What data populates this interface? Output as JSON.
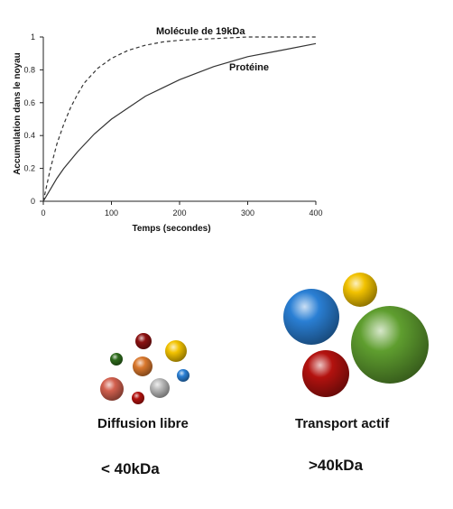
{
  "chart_data": {
    "type": "line",
    "xlabel": "Temps (secondes)",
    "ylabel": "Accumulation dans le noyau",
    "xlim": [
      0,
      400
    ],
    "ylim": [
      0,
      1
    ],
    "xticks": [
      0,
      100,
      200,
      300,
      400
    ],
    "yticks": [
      0,
      0.2,
      0.4,
      0.6,
      0.8,
      1
    ],
    "xtick_labels": [
      "0",
      "100",
      "200",
      "300",
      "400"
    ],
    "ytick_labels": [
      "0",
      "0.2",
      "0.4",
      "0.6",
      "0.8",
      "1"
    ],
    "grid": false,
    "series": [
      {
        "name": "Molécule de 19kDa",
        "style": "dashed",
        "x": [
          0,
          10,
          20,
          30,
          40,
          50,
          60,
          80,
          100,
          125,
          150,
          175,
          200,
          250,
          300,
          350,
          400
        ],
        "y": [
          0,
          0.19,
          0.35,
          0.47,
          0.57,
          0.65,
          0.72,
          0.81,
          0.87,
          0.92,
          0.95,
          0.97,
          0.98,
          0.99,
          1.0,
          1.0,
          1.0
        ]
      },
      {
        "name": "Protéine",
        "style": "solid",
        "x": [
          0,
          10,
          20,
          30,
          50,
          75,
          100,
          125,
          150,
          175,
          200,
          250,
          300,
          350,
          400
        ],
        "y": [
          0,
          0.07,
          0.14,
          0.2,
          0.3,
          0.41,
          0.5,
          0.57,
          0.64,
          0.69,
          0.74,
          0.82,
          0.88,
          0.92,
          0.96
        ]
      }
    ],
    "colors": {
      "axis": "#222222",
      "line": "#333333"
    }
  },
  "captions": {
    "left_title": "Diffusion libre",
    "right_title": "Transport actif",
    "left_size": "< 40kDa",
    "right_size": ">40kDa"
  },
  "sphere_colors": {
    "dark_red": "#8b1010",
    "yellow": "#f2c200",
    "dark_green": "#2e6b1c",
    "orange": "#d9782d",
    "blue": "#2a7fd4",
    "salmon": "#d2604e",
    "silver": "#b9b9b9",
    "red": "#b3120f",
    "green": "#5f9e2f"
  }
}
